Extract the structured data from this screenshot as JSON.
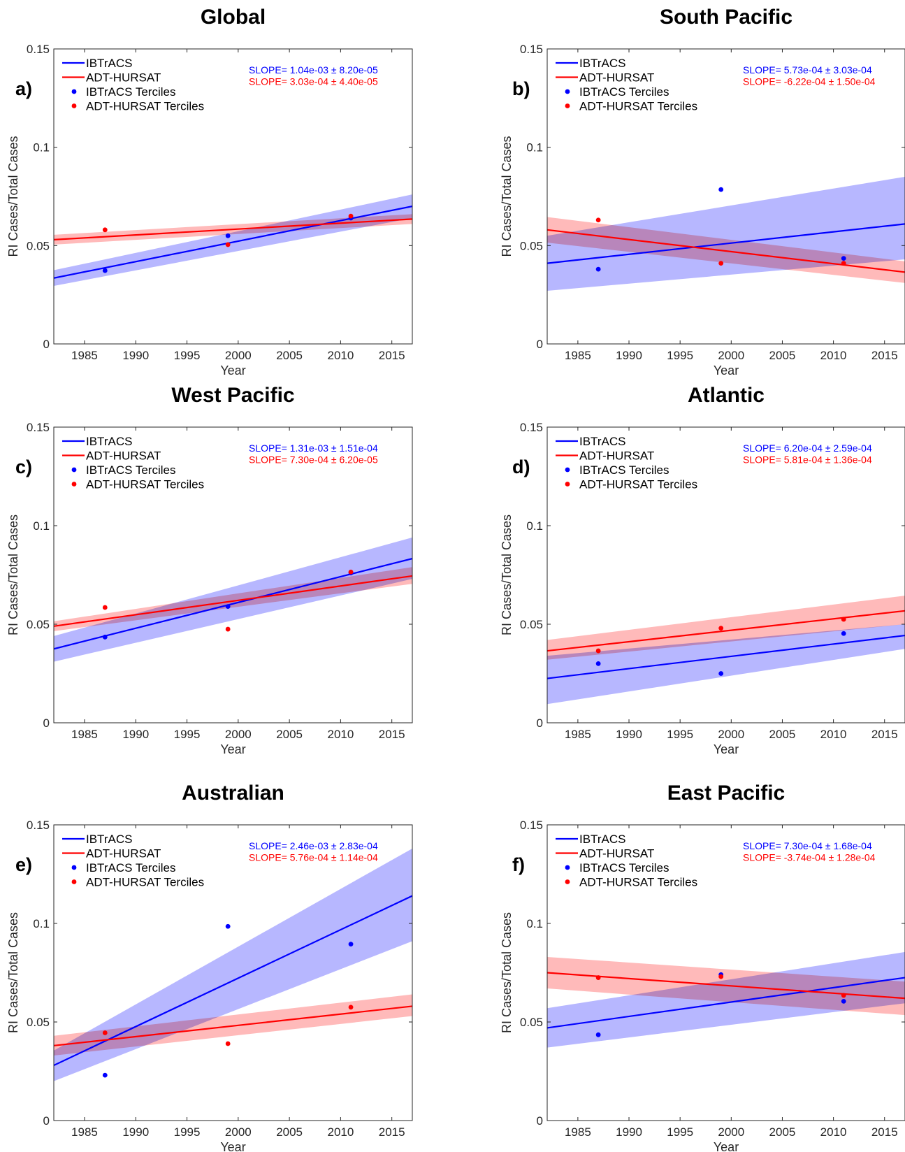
{
  "legend": {
    "ibtracs_line": "IBTrACS",
    "adt_line": "ADT-HURSAT",
    "ibtracs_pts": "IBTrACS Terciles",
    "adt_pts": "ADT-HURSAT Terciles"
  },
  "colors": {
    "ibtracs": "#0000ff",
    "adt": "#ff0000",
    "ibtracs_band": "#b3b3ff",
    "adt_band": "#ffb3b3",
    "axis": "#262626"
  },
  "axes_common": {
    "xlabel": "Year",
    "ylabel": "RI Cases/Total Cases",
    "xlim": [
      1982,
      2017
    ],
    "ylim": [
      0,
      0.15
    ],
    "xticks": [
      1985,
      1990,
      1995,
      2000,
      2005,
      2010,
      2015
    ],
    "yticks": [
      0,
      0.05,
      0.1,
      0.15
    ],
    "ytick_labels": [
      "0",
      "0.05",
      "0.1",
      "0.15"
    ],
    "grid": false,
    "legend_position": "top-left"
  },
  "chart_data": [
    {
      "type": "line",
      "panel": "a)",
      "title": "Global",
      "series": [
        {
          "name": "IBTrACS",
          "line": {
            "x": [
              1982,
              2017
            ],
            "y": [
              0.0335,
              0.07
            ]
          },
          "band_upper": [
            0.0375,
            0.076
          ],
          "band_lower": [
            0.0295,
            0.064
          ],
          "slope_text": "SLOPE= 1.04e-03 ± 8.20e-05",
          "terciles": {
            "x": [
              1987,
              1999,
              2011
            ],
            "y": [
              0.0373,
              0.055,
              0.064
            ]
          }
        },
        {
          "name": "ADT-HURSAT",
          "line": {
            "x": [
              1982,
              2017
            ],
            "y": [
              0.053,
              0.0635
            ]
          },
          "band_upper": [
            0.0555,
            0.066
          ],
          "band_lower": [
            0.0505,
            0.061
          ],
          "slope_text": "SLOPE= 3.03e-04 ± 4.40e-05",
          "terciles": {
            "x": [
              1987,
              1999,
              2011
            ],
            "y": [
              0.058,
              0.0505,
              0.065
            ]
          }
        }
      ]
    },
    {
      "type": "line",
      "panel": "b)",
      "title": "South Pacific",
      "series": [
        {
          "name": "IBTrACS",
          "line": {
            "x": [
              1982,
              2017
            ],
            "y": [
              0.041,
              0.061
            ]
          },
          "band_upper": [
            0.055,
            0.085
          ],
          "band_lower": [
            0.027,
            0.043
          ],
          "slope_text": "SLOPE= 5.73e-04 ± 3.03e-04",
          "terciles": {
            "x": [
              1987,
              1999,
              2011
            ],
            "y": [
              0.038,
              0.0785,
              0.0435
            ]
          }
        },
        {
          "name": "ADT-HURSAT",
          "line": {
            "x": [
              1982,
              2017
            ],
            "y": [
              0.058,
              0.0365
            ]
          },
          "band_upper": [
            0.0645,
            0.042
          ],
          "band_lower": [
            0.0515,
            0.031
          ],
          "slope_text": "SLOPE= -6.22e-04 ± 1.50e-04",
          "terciles": {
            "x": [
              1987,
              1999,
              2011
            ],
            "y": [
              0.063,
              0.041,
              0.041
            ]
          }
        }
      ]
    },
    {
      "type": "line",
      "panel": "c)",
      "title": "West Pacific",
      "series": [
        {
          "name": "IBTrACS",
          "line": {
            "x": [
              1982,
              2017
            ],
            "y": [
              0.0375,
              0.0833
            ]
          },
          "band_upper": [
            0.044,
            0.094
          ],
          "band_lower": [
            0.031,
            0.073
          ],
          "slope_text": "SLOPE= 1.31e-03 ± 1.51e-04",
          "terciles": {
            "x": [
              1987,
              1999,
              2011
            ],
            "y": [
              0.0435,
              0.059,
              0.076
            ]
          }
        },
        {
          "name": "ADT-HURSAT",
          "line": {
            "x": [
              1982,
              2017
            ],
            "y": [
              0.049,
              0.0745
            ]
          },
          "band_upper": [
            0.0515,
            0.079
          ],
          "band_lower": [
            0.0465,
            0.0705
          ],
          "slope_text": "SLOPE= 7.30e-04 ± 6.20e-05",
          "terciles": {
            "x": [
              1987,
              1999,
              2011
            ],
            "y": [
              0.0585,
              0.0475,
              0.0765
            ]
          }
        }
      ]
    },
    {
      "type": "line",
      "panel": "d)",
      "title": "Atlantic",
      "series": [
        {
          "name": "IBTrACS",
          "line": {
            "x": [
              1982,
              2017
            ],
            "y": [
              0.0225,
              0.0443
            ]
          },
          "band_upper": [
            0.034,
            0.05
          ],
          "band_lower": [
            0.0095,
            0.0375
          ],
          "slope_text": "SLOPE= 6.20e-04 ± 2.59e-04",
          "terciles": {
            "x": [
              1987,
              1999,
              2011
            ],
            "y": [
              0.03,
              0.025,
              0.0453
            ]
          }
        },
        {
          "name": "ADT-HURSAT",
          "line": {
            "x": [
              1982,
              2017
            ],
            "y": [
              0.0365,
              0.0568
            ]
          },
          "band_upper": [
            0.042,
            0.0645
          ],
          "band_lower": [
            0.032,
            0.05
          ],
          "slope_text": "SLOPE= 5.81e-04 ± 1.36e-04",
          "terciles": {
            "x": [
              1987,
              1999,
              2011
            ],
            "y": [
              0.0365,
              0.048,
              0.0525
            ]
          }
        }
      ]
    },
    {
      "type": "line",
      "panel": "e)",
      "title": "Australian",
      "series": [
        {
          "name": "IBTrACS",
          "line": {
            "x": [
              1982,
              2017
            ],
            "y": [
              0.028,
              0.114
            ]
          },
          "band_upper": [
            0.0355,
            0.138
          ],
          "band_lower": [
            0.02,
            0.091
          ],
          "slope_text": "SLOPE= 2.46e-03 ± 2.83e-04",
          "terciles": {
            "x": [
              1987,
              1999,
              2011
            ],
            "y": [
              0.023,
              0.0985,
              0.0895
            ]
          }
        },
        {
          "name": "ADT-HURSAT",
          "line": {
            "x": [
              1982,
              2017
            ],
            "y": [
              0.038,
              0.058
            ]
          },
          "band_upper": [
            0.043,
            0.064
          ],
          "band_lower": [
            0.033,
            0.053
          ],
          "slope_text": "SLOPE= 5.76e-04 ± 1.14e-04",
          "terciles": {
            "x": [
              1987,
              1999,
              2011
            ],
            "y": [
              0.0445,
              0.039,
              0.0575
            ]
          }
        }
      ]
    },
    {
      "type": "line",
      "panel": "f)",
      "title": "East Pacific",
      "series": [
        {
          "name": "IBTrACS",
          "line": {
            "x": [
              1982,
              2017
            ],
            "y": [
              0.047,
              0.0725
            ]
          },
          "band_upper": [
            0.057,
            0.0855
          ],
          "band_lower": [
            0.037,
            0.0595
          ],
          "slope_text": "SLOPE= 7.30e-04 ± 1.68e-04",
          "terciles": {
            "x": [
              1987,
              1999,
              2011
            ],
            "y": [
              0.0435,
              0.074,
              0.0605
            ]
          }
        },
        {
          "name": "ADT-HURSAT",
          "line": {
            "x": [
              1982,
              2017
            ],
            "y": [
              0.075,
              0.062
            ]
          },
          "band_upper": [
            0.083,
            0.0705
          ],
          "band_lower": [
            0.067,
            0.0535
          ],
          "slope_text": "SLOPE= -3.74e-04 ± 1.28e-04",
          "terciles": {
            "x": [
              1987,
              1999,
              2011
            ],
            "y": [
              0.0725,
              0.073,
              0.0635
            ]
          }
        }
      ]
    }
  ]
}
